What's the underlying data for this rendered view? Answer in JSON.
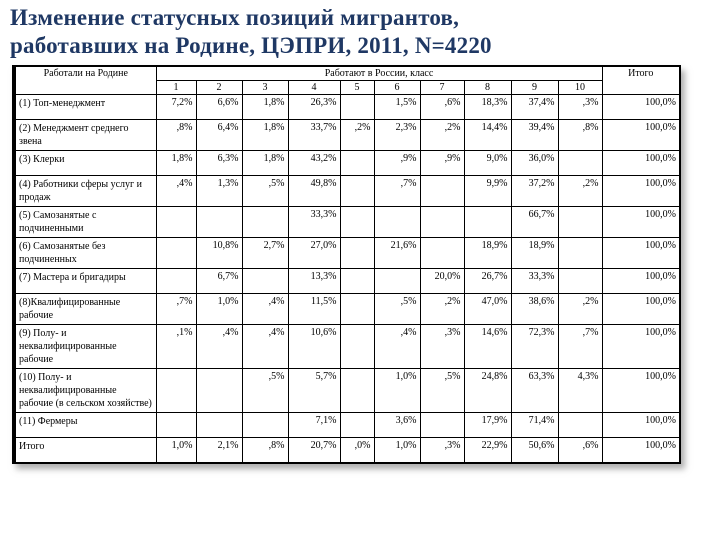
{
  "slide": {
    "title_line1": "Изменение статусных позиций мигрантов,",
    "title_line2": "работавших на Родине, ЦЭПРИ, 2011, N=4220"
  },
  "table": {
    "header": {
      "col_home": "Работали на Родине",
      "col_russia": "Работают в России, класс",
      "col_total": "Итого",
      "class_cols": [
        "1",
        "2",
        "3",
        "4",
        "5",
        "6",
        "7",
        "8",
        "9",
        "10"
      ]
    },
    "rows": [
      {
        "label": "(1) Топ-менеджмент",
        "values": [
          "7,2%",
          "6,6%",
          "1,8%",
          "26,3%",
          "",
          "1,5%",
          ",6%",
          "18,3%",
          "37,4%",
          ",3%",
          "100,0%"
        ]
      },
      {
        "label": "(2) Менеджмент среднего звена",
        "values": [
          ",8%",
          "6,4%",
          "1,8%",
          "33,7%",
          ",2%",
          "2,3%",
          ",2%",
          "14,4%",
          "39,4%",
          ",8%",
          "100,0%"
        ]
      },
      {
        "label": "(3) Клерки",
        "values": [
          "1,8%",
          "6,3%",
          "1,8%",
          "43,2%",
          "",
          ",9%",
          ",9%",
          "9,0%",
          "36,0%",
          "",
          "100,0%"
        ]
      },
      {
        "label": "(4) Работники сферы услуг и продаж",
        "values": [
          ",4%",
          "1,3%",
          ",5%",
          "49,8%",
          "",
          ",7%",
          "",
          "9,9%",
          "37,2%",
          ",2%",
          "100,0%"
        ]
      },
      {
        "label": "(5) Самозанятые с подчиненными",
        "values": [
          "",
          "",
          "",
          "33,3%",
          "",
          "",
          "",
          "",
          "66,7%",
          "",
          "100,0%"
        ]
      },
      {
        "label": "(6) Самозанятые без подчиненных",
        "values": [
          "",
          "10,8%",
          "2,7%",
          "27,0%",
          "",
          "21,6%",
          "",
          "18,9%",
          "18,9%",
          "",
          "100,0%"
        ]
      },
      {
        "label": "(7) Мастера и бригадиры",
        "values": [
          "",
          "6,7%",
          "",
          "13,3%",
          "",
          "",
          "20,0%",
          "26,7%",
          "33,3%",
          "",
          "100,0%"
        ]
      },
      {
        "label": "(8)Квалифицированные рабочие",
        "values": [
          ",7%",
          "1,0%",
          ",4%",
          "11,5%",
          "",
          ",5%",
          ",2%",
          "47,0%",
          "38,6%",
          ",2%",
          "100,0%"
        ]
      },
      {
        "label": "(9) Полу- и неквалифицированные рабочие",
        "values": [
          ",1%",
          ",4%",
          ",4%",
          "10,6%",
          "",
          ",4%",
          ",3%",
          "14,6%",
          "72,3%",
          ",7%",
          "100,0%"
        ]
      },
      {
        "label": "(10) Полу- и неквалифицированные рабочие (в сельском хозяйстве)",
        "values": [
          "",
          "",
          ",5%",
          "5,7%",
          "",
          "1,0%",
          ",5%",
          "24,8%",
          "63,3%",
          "4,3%",
          "100,0%"
        ]
      },
      {
        "label": "(11) Фермеры",
        "values": [
          "",
          "",
          "",
          "7,1%",
          "",
          "3,6%",
          "",
          "17,9%",
          "71,4%",
          "",
          "100,0%"
        ]
      },
      {
        "label": "Итого",
        "values": [
          "1,0%",
          "2,1%",
          ",8%",
          "20,7%",
          ",0%",
          "1,0%",
          ",3%",
          "22,9%",
          "50,6%",
          ",6%",
          "100,0%"
        ]
      }
    ]
  }
}
